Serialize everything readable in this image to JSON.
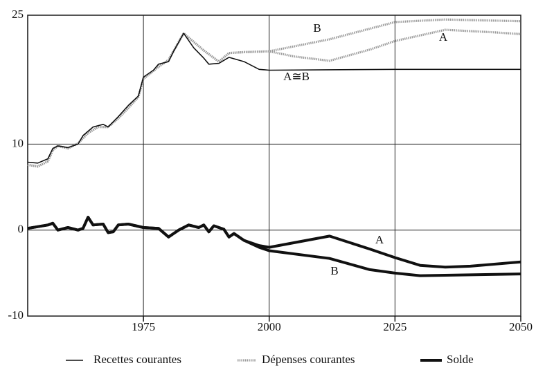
{
  "chart_data": {
    "type": "line",
    "xlim": [
      1952,
      2050
    ],
    "xticks": [
      1975,
      2000,
      2025,
      2050
    ],
    "ylim": [
      -10,
      25
    ],
    "yticks": [
      -10,
      0,
      10,
      25
    ],
    "grid": true,
    "legend": "bottom",
    "series": [
      {
        "name": "Recettes courantes",
        "color": "#111111",
        "style": "thin",
        "lines": [
          {
            "label": "A≅B",
            "x": [
              1952,
              1954,
              1956,
              1957,
              1958,
              1960,
              1962,
              1963,
              1965,
              1967,
              1968,
              1970,
              1972,
              1974,
              1975,
              1977,
              1978,
              1980,
              1981,
              1983,
              1985,
              1987,
              1988,
              1990,
              1992,
              1995,
              1998,
              2000,
              2025,
              2050
            ],
            "values": [
              7.9,
              7.8,
              8.3,
              9.5,
              9.8,
              9.6,
              10.0,
              11.0,
              12.0,
              12.3,
              12.0,
              13.2,
              14.5,
              15.6,
              17.8,
              18.6,
              19.3,
              19.6,
              20.8,
              22.9,
              21.2,
              20.0,
              19.3,
              19.4,
              20.1,
              19.6,
              18.7,
              18.6,
              18.7,
              18.7
            ]
          }
        ]
      },
      {
        "name": "Dépenses courantes",
        "color": "#9a9a9a",
        "style": "dotted",
        "lines": [
          {
            "label": "B",
            "x": [
              1952,
              1954,
              1956,
              1957,
              1958,
              1960,
              1962,
              1964,
              1966,
              1968,
              1970,
              1972,
              1974,
              1975,
              1978,
              1980,
              1983,
              1987,
              1990,
              1992,
              1995,
              2000,
              2012,
              2025,
              2035,
              2050
            ],
            "values": [
              7.6,
              7.4,
              8.0,
              9.3,
              9.8,
              9.5,
              10.1,
              11.3,
              12.0,
              12.0,
              13.0,
              14.2,
              15.5,
              17.6,
              19.0,
              19.8,
              22.9,
              20.9,
              19.6,
              20.6,
              20.7,
              20.8,
              22.2,
              24.2,
              24.5,
              24.3
            ]
          },
          {
            "label": "A",
            "x": [
              1952,
              1954,
              1956,
              1957,
              1958,
              1960,
              1962,
              1964,
              1966,
              1968,
              1970,
              1972,
              1974,
              1975,
              1978,
              1980,
              1983,
              1987,
              1990,
              1992,
              1995,
              2000,
              2005,
              2012,
              2020,
              2025,
              2035,
              2045,
              2050
            ],
            "values": [
              7.6,
              7.4,
              8.0,
              9.3,
              9.8,
              9.5,
              10.1,
              11.3,
              12.0,
              12.0,
              13.0,
              14.2,
              15.5,
              17.6,
              19.0,
              19.8,
              22.9,
              20.9,
              19.6,
              20.6,
              20.7,
              20.8,
              20.2,
              19.7,
              21.0,
              22.0,
              23.3,
              23.0,
              22.8
            ]
          }
        ]
      },
      {
        "name": "Solde",
        "color": "#111111",
        "style": "thick",
        "lines": [
          {
            "label": "A",
            "x": [
              1952,
              1956,
              1957,
              1958,
              1960,
              1962,
              1963,
              1964,
              1965,
              1967,
              1968,
              1969,
              1970,
              1972,
              1975,
              1978,
              1980,
              1982,
              1984,
              1986,
              1987,
              1988,
              1989,
              1991,
              1992,
              1993,
              1995,
              1998,
              2000,
              2012,
              2020,
              2025,
              2030,
              2035,
              2040,
              2050
            ],
            "values": [
              0.2,
              0.6,
              0.8,
              0.0,
              0.3,
              0.0,
              0.2,
              1.5,
              0.6,
              0.7,
              -0.3,
              -0.2,
              0.6,
              0.7,
              0.3,
              0.2,
              -0.8,
              0.0,
              0.6,
              0.3,
              0.6,
              -0.2,
              0.5,
              0.1,
              -0.8,
              -0.4,
              -1.2,
              -1.8,
              -2.0,
              -0.7,
              -2.2,
              -3.2,
              -4.1,
              -4.3,
              -4.2,
              -3.7
            ]
          },
          {
            "label": "B",
            "x": [
              1952,
              1956,
              1957,
              1958,
              1960,
              1962,
              1963,
              1964,
              1965,
              1967,
              1968,
              1969,
              1970,
              1972,
              1975,
              1978,
              1980,
              1982,
              1984,
              1986,
              1987,
              1988,
              1989,
              1991,
              1992,
              1993,
              1995,
              1998,
              2000,
              2012,
              2020,
              2025,
              2030,
              2050
            ],
            "values": [
              0.2,
              0.6,
              0.8,
              0.0,
              0.3,
              0.0,
              0.2,
              1.5,
              0.6,
              0.7,
              -0.3,
              -0.2,
              0.6,
              0.7,
              0.3,
              0.2,
              -0.8,
              0.0,
              0.6,
              0.3,
              0.6,
              -0.2,
              0.5,
              0.1,
              -0.8,
              -0.4,
              -1.2,
              -2.0,
              -2.4,
              -3.3,
              -4.6,
              -5.0,
              -5.3,
              -5.1
            ]
          }
        ]
      }
    ]
  }
}
